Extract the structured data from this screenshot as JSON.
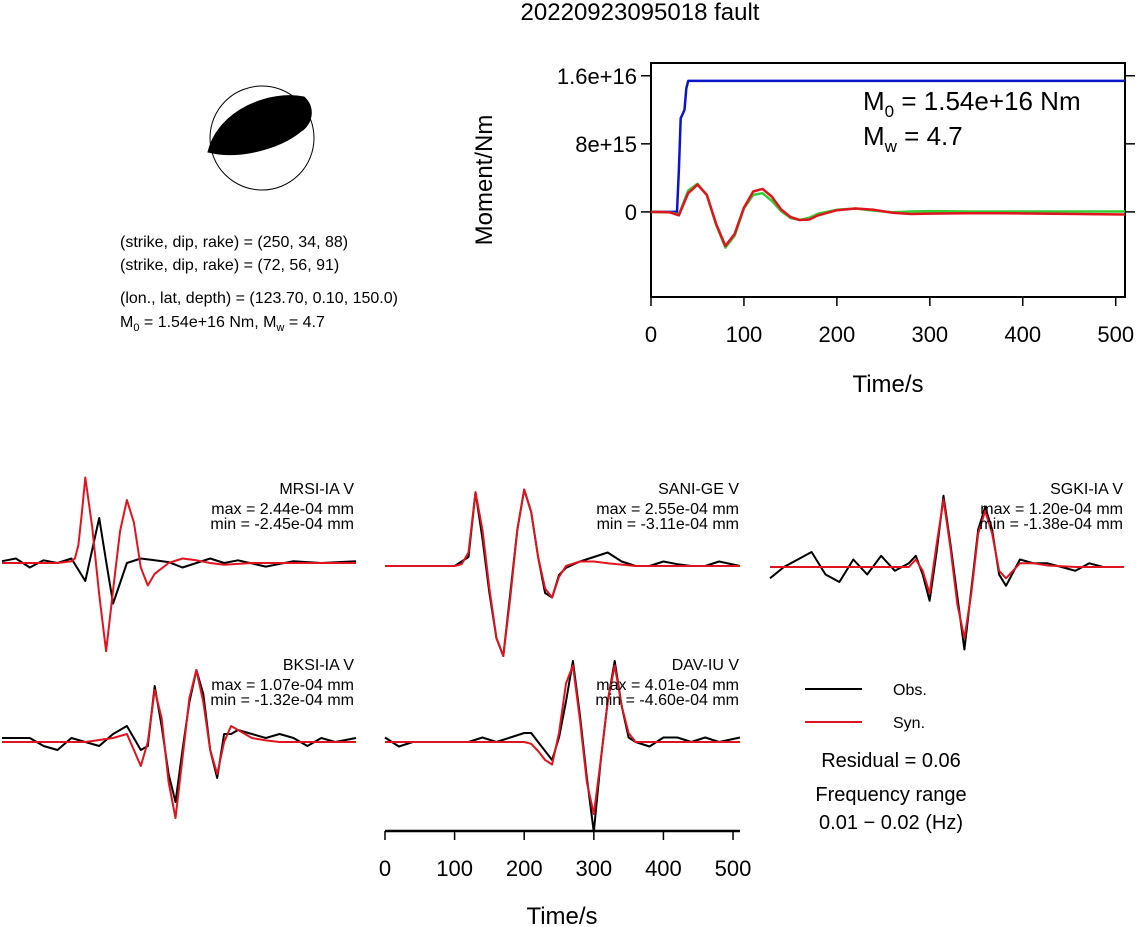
{
  "title": "20220923095018 fault",
  "mechanism": {
    "line1": "(strike, dip, rake) = (250, 34, 88)",
    "line2": "(strike, dip, rake) = (72, 56, 91)",
    "line3": "(lon., lat, depth) = (123.70, 0.10, 150.0)",
    "line4_m0": "M",
    "line4_m0_sub": "0",
    "line4_m0_rest": " = 1.54e+16 Nm, M",
    "line4_mw_sub": "w",
    "line4_mw_rest": " = 4.7"
  },
  "colors": {
    "obs": "#000000",
    "syn": "#e0141e",
    "moment": "#0a14c8",
    "stf_green": "#33cc33",
    "stf_red": "#e0141e"
  },
  "chart_data": [
    {
      "type": "line",
      "id": "moment-rate",
      "ylabel": "Moment/Nm",
      "xlabel": "Time/s",
      "xlim": [
        0,
        510
      ],
      "ylim": [
        -1e+16,
        1.75e+16
      ],
      "yticks": [
        {
          "value": 0,
          "label": "0"
        },
        {
          "value": 8000000000000000.0,
          "label": "8e+15"
        },
        {
          "value": 1.6e+16,
          "label": "1.6e+16"
        }
      ],
      "xticks": [
        0,
        100,
        200,
        300,
        400,
        500
      ],
      "annotation_m0": {
        "sym": "M",
        "sub": "0",
        "rest": " = 1.54e+16 Nm"
      },
      "annotation_mw": {
        "sym": "M",
        "sub": "w",
        "rest": " = 4.7"
      },
      "series": [
        {
          "color": "blue",
          "x": [
            0,
            28,
            30,
            32,
            34,
            36,
            38,
            40,
            42,
            510
          ],
          "y": [
            0,
            0,
            5000000000000000.0,
            1.1e+16,
            1.15e+16,
            1.2e+16,
            1.45e+16,
            1.54e+16,
            1.54e+16,
            1.54e+16
          ]
        },
        {
          "color": "green",
          "x": [
            0,
            20,
            30,
            40,
            50,
            60,
            70,
            80,
            90,
            100,
            110,
            120,
            130,
            140,
            150,
            160,
            170,
            180,
            200,
            220,
            240,
            260,
            280,
            300,
            340,
            380,
            420,
            460,
            510
          ],
          "y": [
            0,
            -50000000000000.0,
            -300000000000000.0,
            2500000000000000.0,
            3300000000000000.0,
            2000000000000000.0,
            -1500000000000000.0,
            -4200000000000000.0,
            -2800000000000000.0,
            400000000000000.0,
            2000000000000000.0,
            2200000000000000.0,
            1300000000000000.0,
            100000000000000.0,
            -700000000000000.0,
            -950000000000000.0,
            -700000000000000.0,
            -200000000000000.0,
            250000000000000.0,
            400000000000000.0,
            150000000000000.0,
            -50000000000000.0,
            50000000000000.0,
            100000000000000.0,
            50000000000000.0,
            50000000000000.0,
            50000000000000.0,
            50000000000000.0,
            50000000000000.0
          ]
        },
        {
          "color": "red",
          "x": [
            0,
            20,
            30,
            40,
            50,
            60,
            70,
            80,
            90,
            100,
            110,
            120,
            130,
            140,
            150,
            160,
            170,
            180,
            200,
            220,
            240,
            260,
            280,
            300,
            340,
            380,
            420,
            460,
            510
          ],
          "y": [
            0,
            -50000000000000.0,
            -400000000000000.0,
            2200000000000000.0,
            3200000000000000.0,
            2000000000000000.0,
            -1400000000000000.0,
            -4000000000000000.0,
            -2600000000000000.0,
            500000000000000.0,
            2400000000000000.0,
            2700000000000000.0,
            1800000000000000.0,
            300000000000000.0,
            -600000000000000.0,
            -950000000000000.0,
            -900000000000000.0,
            -400000000000000.0,
            200000000000000.0,
            400000000000000.0,
            250000000000000.0,
            -100000000000000.0,
            -250000000000000.0,
            -200000000000000.0,
            -150000000000000.0,
            -150000000000000.0,
            -200000000000000.0,
            -250000000000000.0,
            -300000000000000.0
          ]
        }
      ]
    },
    {
      "type": "line",
      "id": "waveforms",
      "xlabel": "Time/s",
      "xlim": [
        0,
        510
      ],
      "xticks": [
        0,
        100,
        200,
        300,
        400,
        500
      ],
      "stations": [
        {
          "name": "MRSI-IA V",
          "max": "max = 2.44e-04 mm",
          "min": "min = -2.45e-04 mm",
          "obs_x": [
            0,
            20,
            40,
            60,
            80,
            100,
            120,
            140,
            150,
            160,
            180,
            200,
            220,
            240,
            260,
            280,
            300,
            320,
            340,
            380,
            420,
            460,
            510
          ],
          "obs_y": [
            0.02,
            0.05,
            -0.05,
            0.03,
            0.0,
            0.05,
            -0.2,
            0.5,
            0.02,
            -0.45,
            0.0,
            0.05,
            0.03,
            0.01,
            -0.05,
            0.0,
            0.05,
            0.0,
            0.03,
            -0.04,
            0.02,
            0.0,
            0.02
          ],
          "syn_x": [
            0,
            40,
            80,
            100,
            105,
            110,
            115,
            120,
            130,
            140,
            150,
            160,
            170,
            180,
            190,
            200,
            210,
            220,
            240,
            260,
            280,
            300,
            320,
            360,
            400,
            440,
            480,
            510
          ],
          "syn_y": [
            0,
            0,
            0,
            0.02,
            0.05,
            0.2,
            0.55,
            0.95,
            0.4,
            -0.35,
            -0.98,
            -0.3,
            0.35,
            0.7,
            0.45,
            -0.05,
            -0.25,
            -0.12,
            0.0,
            0.05,
            0.03,
            0.0,
            -0.02,
            0.0,
            0.0,
            0.0,
            0.0,
            0.0
          ]
        },
        {
          "name": "SANI-GE V",
          "max": "max = 2.55e-04 mm",
          "min": "min = -3.11e-04 mm",
          "obs_x": [
            0,
            40,
            80,
            100,
            110,
            120,
            130,
            140,
            150,
            160,
            170,
            180,
            190,
            200,
            210,
            220,
            230,
            240,
            250,
            260,
            280,
            300,
            320,
            340,
            360,
            380,
            400,
            420,
            440,
            460,
            480,
            510
          ],
          "obs_y": [
            0,
            0,
            0,
            0.0,
            0.05,
            0.1,
            0.82,
            0.3,
            -0.3,
            -0.8,
            -1.0,
            -0.3,
            0.4,
            0.85,
            0.6,
            0.1,
            -0.3,
            -0.35,
            -0.1,
            -0.02,
            0.05,
            0.1,
            0.15,
            0.05,
            0.0,
            0.0,
            0.05,
            0.02,
            0.0,
            0.0,
            0.05,
            0.0
          ],
          "syn_x": [
            0,
            40,
            80,
            100,
            110,
            120,
            130,
            140,
            150,
            160,
            170,
            180,
            190,
            200,
            210,
            220,
            230,
            240,
            250,
            260,
            280,
            300,
            320,
            360,
            400,
            440,
            480,
            510
          ],
          "syn_y": [
            0,
            0,
            0,
            0.0,
            0.02,
            0.15,
            0.82,
            0.4,
            -0.25,
            -0.8,
            -1.0,
            -0.35,
            0.4,
            0.85,
            0.6,
            0.1,
            -0.25,
            -0.35,
            -0.12,
            0.0,
            0.05,
            0.05,
            0.03,
            0.0,
            0.0,
            0.0,
            0.0,
            0.0
          ]
        },
        {
          "name": "SGKI-IA V",
          "max": "max = 1.20e-04 mm",
          "min": "min = -1.38e-04 mm",
          "obs_x": [
            0,
            20,
            40,
            60,
            80,
            100,
            120,
            140,
            160,
            180,
            200,
            210,
            220,
            230,
            240,
            250,
            260,
            270,
            280,
            290,
            300,
            310,
            320,
            330,
            340,
            360,
            380,
            400,
            420,
            440,
            460,
            480,
            510
          ],
          "obs_y": [
            -0.15,
            0.0,
            0.1,
            0.2,
            -0.1,
            -0.2,
            0.1,
            -0.1,
            0.15,
            -0.05,
            0.05,
            0.15,
            -0.1,
            -0.45,
            0.2,
            0.95,
            0.3,
            -0.4,
            -1.1,
            -0.3,
            0.5,
            0.8,
            0.5,
            -0.1,
            -0.25,
            0.1,
            0.05,
            0.05,
            0.0,
            -0.05,
            0.05,
            0.0,
            0.0
          ],
          "syn_x": [
            0,
            40,
            80,
            120,
            160,
            200,
            210,
            220,
            230,
            240,
            250,
            260,
            270,
            280,
            290,
            300,
            310,
            320,
            330,
            340,
            360,
            380,
            400,
            440,
            480,
            510
          ],
          "syn_y": [
            0,
            0,
            0,
            0,
            0,
            0.0,
            0.1,
            -0.05,
            -0.35,
            0.3,
            0.9,
            0.25,
            -0.5,
            -0.95,
            -0.35,
            0.45,
            0.75,
            0.45,
            -0.05,
            -0.15,
            0.05,
            0.05,
            0.02,
            0.0,
            0.0,
            0.0
          ]
        },
        {
          "name": "BKSI-IA V",
          "max": "max = 1.07e-04 mm",
          "min": "min = -1.32e-04 mm",
          "obs_x": [
            0,
            20,
            40,
            60,
            80,
            100,
            120,
            140,
            160,
            180,
            200,
            210,
            220,
            230,
            240,
            250,
            260,
            270,
            280,
            290,
            300,
            310,
            320,
            330,
            340,
            360,
            380,
            400,
            420,
            440,
            460,
            480,
            510
          ],
          "obs_y": [
            0.05,
            0.05,
            0.05,
            -0.05,
            -0.1,
            0.05,
            0.0,
            -0.05,
            0.1,
            0.2,
            -0.1,
            -0.05,
            0.7,
            0.2,
            -0.4,
            -0.75,
            -0.1,
            0.5,
            0.9,
            0.6,
            -0.1,
            -0.45,
            0.1,
            0.1,
            0.15,
            0.1,
            0.05,
            0.1,
            0.05,
            -0.05,
            0.05,
            0.0,
            0.05
          ],
          "syn_x": [
            0,
            40,
            80,
            120,
            160,
            180,
            190,
            200,
            210,
            220,
            230,
            240,
            250,
            260,
            270,
            280,
            290,
            300,
            310,
            320,
            330,
            340,
            360,
            380,
            400,
            440,
            480,
            510
          ],
          "syn_y": [
            0,
            0,
            0,
            0,
            0.05,
            0.1,
            -0.1,
            -0.3,
            0.0,
            0.65,
            0.3,
            -0.5,
            -0.95,
            -0.2,
            0.55,
            0.9,
            0.5,
            -0.1,
            -0.4,
            0.0,
            0.2,
            0.15,
            0.05,
            0.02,
            0.0,
            0.0,
            0.0,
            0.0
          ]
        },
        {
          "name": "DAV-IU V",
          "max": "max = 4.01e-04 mm",
          "min": "min = -4.60e-04 mm",
          "obs_x": [
            0,
            20,
            40,
            60,
            80,
            100,
            120,
            140,
            160,
            180,
            200,
            210,
            220,
            230,
            240,
            250,
            260,
            270,
            280,
            290,
            300,
            310,
            320,
            330,
            340,
            350,
            360,
            380,
            400,
            420,
            440,
            460,
            480,
            510
          ],
          "obs_y": [
            0.05,
            -0.05,
            0.0,
            0.0,
            0.0,
            0.0,
            0.0,
            0.05,
            0.0,
            0.05,
            0.1,
            0.1,
            0.0,
            -0.1,
            -0.2,
            0.05,
            0.45,
            0.9,
            0.3,
            -0.4,
            -1.0,
            -0.2,
            0.45,
            0.9,
            0.4,
            0.05,
            0.0,
            -0.05,
            0.05,
            0.05,
            0.0,
            0.05,
            0.0,
            0.05
          ],
          "syn_x": [
            0,
            40,
            80,
            120,
            160,
            200,
            210,
            220,
            230,
            240,
            250,
            260,
            270,
            280,
            290,
            300,
            310,
            320,
            330,
            340,
            350,
            360,
            380,
            400,
            440,
            480,
            510
          ],
          "syn_y": [
            0,
            0,
            0,
            0,
            0,
            0.0,
            -0.02,
            -0.1,
            -0.2,
            -0.25,
            0.1,
            0.65,
            0.85,
            0.25,
            -0.45,
            -0.8,
            -0.2,
            0.45,
            0.85,
            0.4,
            0.1,
            0.0,
            0.0,
            0.0,
            0.0,
            0.0,
            0.0
          ]
        }
      ]
    }
  ],
  "legend": {
    "obs": "Obs.",
    "syn": "Syn."
  },
  "residual": "Residual = 0.06",
  "freq_label": "Frequency range",
  "freq_value": "0.01 − 0.02 (Hz)"
}
